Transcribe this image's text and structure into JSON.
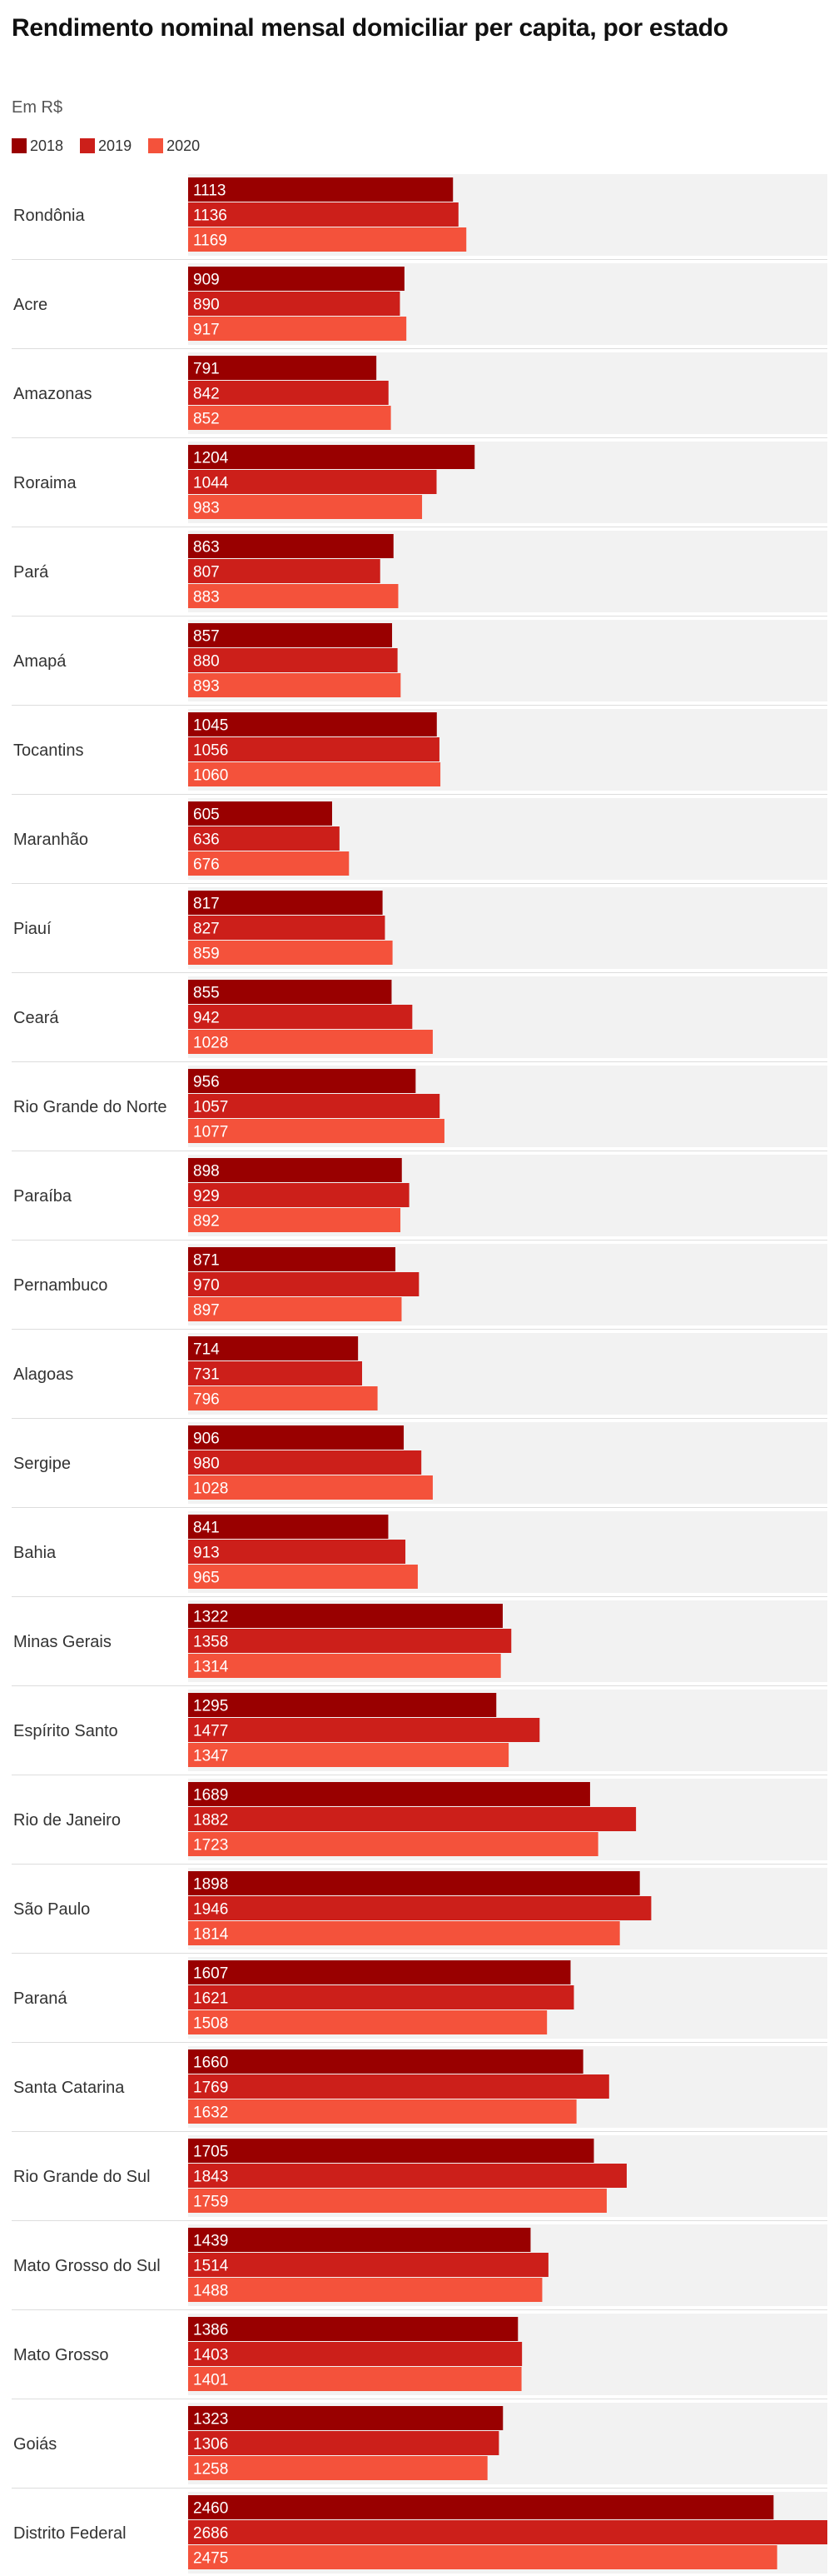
{
  "chart_data": {
    "type": "bar",
    "orientation": "horizontal",
    "title": "Rendimento nominal mensal domiciliar per capita, por estado",
    "subtitle": "Em R$",
    "legend_position": "top-left",
    "grid": false,
    "xlim": [
      0,
      2686
    ],
    "categories": [
      "Rondônia",
      "Acre",
      "Amazonas",
      "Roraima",
      "Pará",
      "Amapá",
      "Tocantins",
      "Maranhão",
      "Piauí",
      "Ceará",
      "Rio Grande do Norte",
      "Paraíba",
      "Pernambuco",
      "Alagoas",
      "Sergipe",
      "Bahia",
      "Minas Gerais",
      "Espírito Santo",
      "Rio de Janeiro",
      "São Paulo",
      "Paraná",
      "Santa Catarina",
      "Rio Grande do Sul",
      "Mato Grosso do Sul",
      "Mato Grosso",
      "Goiás",
      "Distrito Federal"
    ],
    "series": [
      {
        "name": "2018",
        "color": "#990000",
        "values": [
          1113,
          909,
          791,
          1204,
          863,
          857,
          1045,
          605,
          817,
          855,
          956,
          898,
          871,
          714,
          906,
          841,
          1322,
          1295,
          1689,
          1898,
          1607,
          1660,
          1705,
          1439,
          1386,
          1323,
          2460
        ]
      },
      {
        "name": "2019",
        "color": "#cc1f1a",
        "values": [
          1136,
          890,
          842,
          1044,
          807,
          880,
          1056,
          636,
          827,
          942,
          1057,
          929,
          970,
          731,
          980,
          913,
          1358,
          1477,
          1882,
          1946,
          1621,
          1769,
          1843,
          1514,
          1403,
          1306,
          2686
        ]
      },
      {
        "name": "2020",
        "color": "#f4523b",
        "values": [
          1169,
          917,
          852,
          983,
          883,
          893,
          1060,
          676,
          859,
          1028,
          1077,
          892,
          897,
          796,
          1028,
          965,
          1314,
          1347,
          1723,
          1814,
          1508,
          1632,
          1759,
          1488,
          1401,
          1258,
          2475
        ]
      }
    ]
  }
}
